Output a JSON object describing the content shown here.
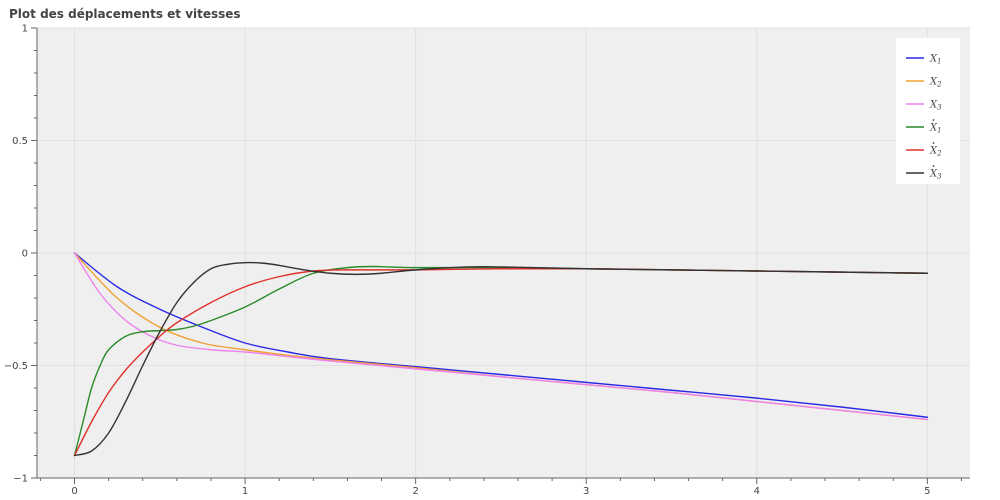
{
  "chart_data": {
    "type": "line",
    "title": "Plot des déplacements et vitesses",
    "xlim": [
      -0.22,
      5.25
    ],
    "ylim": [
      -1,
      1
    ],
    "x_ticks": [
      0,
      1,
      2,
      3,
      4,
      5
    ],
    "y_ticks": [
      -1,
      -0.5,
      0,
      0.5,
      1
    ],
    "y_tick_labels": [
      "−1",
      "−0.5",
      "0",
      "0.5",
      "1"
    ],
    "grid": true,
    "legend_position": "top-right",
    "series": [
      {
        "name": "X1",
        "label_main": "X",
        "label_sub": "1",
        "dot": false,
        "color": "#2a2ae6",
        "x": [
          0,
          0.25,
          0.5,
          0.75,
          1.0,
          1.25,
          1.5,
          2.0,
          2.5,
          3.0,
          3.5,
          4.0,
          4.5,
          5.0
        ],
        "y": [
          0,
          -0.15,
          -0.25,
          -0.33,
          -0.4,
          -0.44,
          -0.47,
          -0.505,
          -0.54,
          -0.575,
          -0.61,
          -0.645,
          -0.685,
          -0.73
        ]
      },
      {
        "name": "X2",
        "label_main": "X",
        "label_sub": "2",
        "dot": false,
        "color": "#f0a030",
        "x": [
          0,
          0.25,
          0.5,
          0.75,
          1.0,
          1.25,
          1.5,
          2.0,
          2.5,
          3.0,
          3.5,
          4.0,
          4.5,
          5.0
        ],
        "y": [
          0,
          -0.2,
          -0.33,
          -0.4,
          -0.43,
          -0.455,
          -0.475,
          -0.51,
          -0.55,
          -0.585,
          -0.62,
          -0.66,
          -0.7,
          -0.74
        ]
      },
      {
        "name": "X3",
        "label_main": "X",
        "label_sub": "3",
        "dot": false,
        "color": "#ee82ee",
        "x": [
          0,
          0.15,
          0.3,
          0.45,
          0.6,
          0.8,
          1.0,
          1.25,
          1.5,
          2.0,
          2.5,
          3.0,
          3.5,
          4.0,
          4.5,
          5.0
        ],
        "y": [
          0,
          -0.18,
          -0.3,
          -0.37,
          -0.41,
          -0.43,
          -0.44,
          -0.46,
          -0.48,
          -0.515,
          -0.55,
          -0.585,
          -0.62,
          -0.66,
          -0.7,
          -0.74
        ]
      },
      {
        "name": "Ẋ1",
        "label_main": "X",
        "label_sub": "1",
        "dot": true,
        "color": "#2a8a2a",
        "x": [
          0,
          0.05,
          0.1,
          0.15,
          0.2,
          0.3,
          0.4,
          0.5,
          0.6,
          0.7,
          0.8,
          1.0,
          1.2,
          1.4,
          1.6,
          1.75,
          2.0,
          2.5,
          3.0,
          3.5,
          4.0,
          4.5,
          5.0
        ],
        "y": [
          -0.9,
          -0.75,
          -0.6,
          -0.5,
          -0.43,
          -0.37,
          -0.35,
          -0.345,
          -0.34,
          -0.325,
          -0.3,
          -0.24,
          -0.16,
          -0.09,
          -0.065,
          -0.06,
          -0.065,
          -0.065,
          -0.07,
          -0.075,
          -0.08,
          -0.085,
          -0.09
        ]
      },
      {
        "name": "Ẋ2",
        "label_main": "X",
        "label_sub": "2",
        "dot": true,
        "color": "#e0302a",
        "x": [
          0,
          0.1,
          0.2,
          0.3,
          0.4,
          0.5,
          0.6,
          0.8,
          1.0,
          1.2,
          1.4,
          1.6,
          2.0,
          2.5,
          3.0,
          3.5,
          4.0,
          4.5,
          5.0
        ],
        "y": [
          -0.9,
          -0.75,
          -0.62,
          -0.52,
          -0.44,
          -0.37,
          -0.31,
          -0.22,
          -0.15,
          -0.105,
          -0.08,
          -0.075,
          -0.075,
          -0.07,
          -0.07,
          -0.075,
          -0.08,
          -0.085,
          -0.09
        ]
      },
      {
        "name": "Ẋ3",
        "label_main": "X",
        "label_sub": "3",
        "dot": true,
        "color": "#333333",
        "x": [
          0,
          0.1,
          0.2,
          0.3,
          0.4,
          0.5,
          0.6,
          0.7,
          0.8,
          0.9,
          1.0,
          1.1,
          1.2,
          1.35,
          1.5,
          1.65,
          1.8,
          2.0,
          2.3,
          2.5,
          3.0,
          3.5,
          4.0,
          4.5,
          5.0
        ],
        "y": [
          -0.9,
          -0.88,
          -0.8,
          -0.66,
          -0.5,
          -0.35,
          -0.22,
          -0.13,
          -0.07,
          -0.05,
          -0.043,
          -0.045,
          -0.055,
          -0.075,
          -0.09,
          -0.095,
          -0.09,
          -0.075,
          -0.062,
          -0.062,
          -0.07,
          -0.075,
          -0.08,
          -0.085,
          -0.09
        ]
      }
    ]
  }
}
